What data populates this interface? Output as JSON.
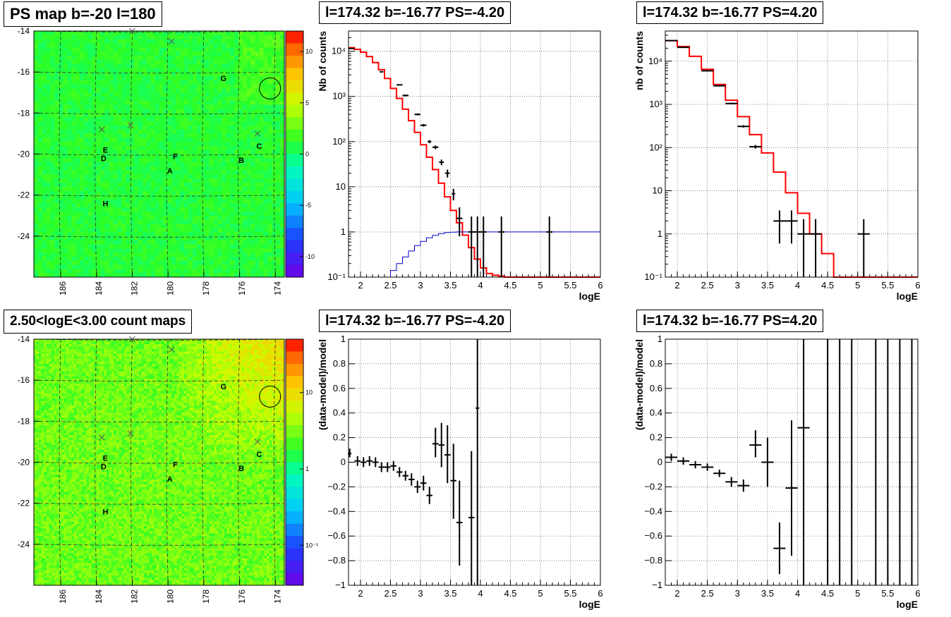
{
  "titles": {
    "map_ps": "PS map b=-20 l=180",
    "spec1": "l=174.32 b=-16.77 PS=-4.20",
    "spec2": "l=174.32 b=-16.77 PS=4.20",
    "map_count": "2.50<logE<3.00 count maps",
    "res1": "l=174.32 b=-16.77 PS=-4.20",
    "res2": "l=174.32 b=-16.77 PS=4.20"
  },
  "colors": {
    "data": "#000000",
    "model": "#ff0000",
    "efficiency": "#0000cc",
    "grid": "#555555",
    "marker": "#555555"
  },
  "chart_data": [
    {
      "type": "heatmap",
      "id": "ps_map",
      "x_ticks": [
        186,
        184,
        182,
        180,
        178,
        176,
        174
      ],
      "y_ticks": [
        -14,
        -16,
        -18,
        -20,
        -22,
        -24
      ],
      "xlim": [
        187.5,
        173.5
      ],
      "ylim": [
        -26,
        -14
      ],
      "colorbar_ticks": [
        "10",
        "5",
        "0",
        "-5",
        "-10"
      ],
      "colorbar_values": [
        10,
        5,
        0,
        -5,
        -10
      ],
      "zlim": [
        -12,
        12
      ],
      "background_value": 1,
      "markers": [
        {
          "label": "A",
          "l": 179.9,
          "b": -20.8
        },
        {
          "label": "B",
          "l": 175.9,
          "b": -20.3
        },
        {
          "label": "C",
          "l": 174.9,
          "b": -19.6
        },
        {
          "label": "D",
          "l": 183.6,
          "b": -20.2
        },
        {
          "label": "E",
          "l": 183.5,
          "b": -19.8
        },
        {
          "label": "F",
          "l": 179.6,
          "b": -20.1
        },
        {
          "label": "G",
          "l": 176.9,
          "b": -16.3
        },
        {
          "label": "H",
          "l": 183.5,
          "b": -22.4
        }
      ],
      "crosses": [
        {
          "l": 182.0,
          "b": -14.0
        },
        {
          "l": 179.8,
          "b": -14.5
        },
        {
          "l": 183.7,
          "b": -18.8
        },
        {
          "l": 182.1,
          "b": -18.6
        },
        {
          "l": 175.0,
          "b": -19.0
        }
      ],
      "circle": {
        "l": 174.3,
        "b": -16.8
      }
    },
    {
      "type": "line",
      "id": "spectrum_neg",
      "xlabel": "logE",
      "ylabel": "Nb of counts",
      "log_y": true,
      "xlim": [
        1.8,
        6.0
      ],
      "ylim": [
        0.1,
        28000
      ],
      "x_ticks": [
        2,
        2.5,
        3,
        3.5,
        4,
        4.5,
        5,
        5.5,
        6
      ],
      "x_tick_labels": [
        "2",
        "2.5",
        "3",
        "3.5",
        "4",
        "4.5",
        "5",
        "5.5",
        "6"
      ],
      "y_ticks": [
        0.1,
        1,
        10,
        100,
        1000,
        10000
      ],
      "y_tick_labels": [
        "10⁻¹",
        "1",
        "10",
        "10²",
        "10³",
        "10⁴"
      ],
      "grid": true,
      "series": [
        {
          "kind": "step",
          "color": "red",
          "x_edges": [
            1.8,
            1.9,
            2.0,
            2.1,
            2.2,
            2.3,
            2.4,
            2.5,
            2.6,
            2.7,
            2.8,
            2.9,
            3.0,
            3.1,
            3.2,
            3.3,
            3.4,
            3.5,
            3.6,
            3.7,
            3.8,
            3.9,
            4.0,
            4.1,
            4.2,
            4.3,
            4.4,
            4.5,
            6.0
          ],
          "values": [
            12000,
            11000,
            9500,
            7600,
            5600,
            3900,
            2500,
            1500,
            900,
            520,
            290,
            160,
            85,
            45,
            24,
            12,
            6,
            3,
            1.6,
            0.85,
            0.45,
            0.25,
            0.16,
            0.12,
            0.11,
            0.105,
            0.1,
            0.1
          ]
        },
        {
          "kind": "step",
          "color": "blue",
          "x_edges": [
            2.4,
            2.5,
            2.6,
            2.7,
            2.8,
            2.9,
            3.0,
            3.1,
            3.2,
            3.3,
            3.4,
            3.5,
            3.6,
            3.7,
            6.0
          ],
          "values": [
            0.1,
            0.14,
            0.2,
            0.28,
            0.38,
            0.5,
            0.62,
            0.74,
            0.84,
            0.92,
            0.97,
            0.99,
            1.0,
            1.0
          ]
        },
        {
          "kind": "points",
          "color": "black",
          "points": [
            {
              "x": 1.85,
              "y": 11500,
              "xe": 0.05,
              "lo": 11300,
              "hi": 11700
            },
            {
              "x": 2.35,
              "y": 3500,
              "xe": 0.03,
              "lo": 3400,
              "hi": 3600
            },
            {
              "x": 2.65,
              "y": 1800,
              "xe": 0.05,
              "lo": 1750,
              "hi": 1850
            },
            {
              "x": 2.75,
              "y": 1050,
              "xe": 0.05,
              "lo": 1000,
              "hi": 1100
            },
            {
              "x": 2.95,
              "y": 400,
              "xe": 0.05,
              "lo": 380,
              "hi": 420
            },
            {
              "x": 3.05,
              "y": 230,
              "xe": 0.05,
              "lo": 215,
              "hi": 245
            },
            {
              "x": 3.15,
              "y": 100,
              "xe": 0.03,
              "lo": 92,
              "hi": 108
            },
            {
              "x": 3.25,
              "y": 75,
              "xe": 0.05,
              "lo": 68,
              "hi": 82
            },
            {
              "x": 3.35,
              "y": 35,
              "xe": 0.04,
              "lo": 30,
              "hi": 40
            },
            {
              "x": 3.45,
              "y": 20,
              "xe": 0.04,
              "lo": 16,
              "hi": 24
            },
            {
              "x": 3.55,
              "y": 7,
              "xe": 0.03,
              "lo": 5,
              "hi": 9
            },
            {
              "x": 3.65,
              "y": 2,
              "xe": 0.05,
              "lo": 0.8,
              "hi": 3.5
            },
            {
              "x": 3.85,
              "y": 1,
              "xe": 0.05,
              "lo": 0.1,
              "hi": 2.2
            },
            {
              "x": 3.95,
              "y": 1,
              "xe": 0.05,
              "lo": 0.1,
              "hi": 2.2
            },
            {
              "x": 4.05,
              "y": 1,
              "xe": 0.05,
              "lo": 0.1,
              "hi": 2.2
            },
            {
              "x": 4.35,
              "y": 1,
              "xe": 0.05,
              "lo": 0.1,
              "hi": 2.2
            },
            {
              "x": 5.15,
              "y": 1,
              "xe": 0.05,
              "lo": 0.1,
              "hi": 2.2
            }
          ]
        }
      ]
    },
    {
      "type": "line",
      "id": "spectrum_pos",
      "xlabel": "logE",
      "ylabel": "nb of counts",
      "log_y": true,
      "xlim": [
        1.8,
        6.0
      ],
      "ylim": [
        0.1,
        50000
      ],
      "x_ticks": [
        2,
        2.5,
        3,
        3.5,
        4,
        4.5,
        5,
        5.5,
        6
      ],
      "x_tick_labels": [
        "2",
        "2.5",
        "3",
        "3.5",
        "4",
        "4.5",
        "5",
        "5.5",
        "6"
      ],
      "y_ticks": [
        0.1,
        1,
        10,
        100,
        1000,
        10000
      ],
      "y_tick_labels": [
        "10⁻¹",
        "1",
        "10",
        "10²",
        "10³",
        "10⁴"
      ],
      "grid": true,
      "series": [
        {
          "kind": "step",
          "color": "red",
          "x_edges": [
            1.8,
            2.0,
            2.2,
            2.4,
            2.6,
            2.8,
            3.0,
            3.2,
            3.4,
            3.6,
            3.8,
            4.0,
            4.2,
            4.4,
            4.6,
            6.0
          ],
          "values": [
            30000,
            22000,
            13000,
            6500,
            2900,
            1250,
            520,
            200,
            75,
            27,
            9,
            3,
            1,
            0.35,
            0.1
          ]
        },
        {
          "kind": "points",
          "color": "black",
          "points": [
            {
              "x": 1.9,
              "y": 30000,
              "xe": 0.1,
              "lo": 29600,
              "hi": 30400
            },
            {
              "x": 2.1,
              "y": 21000,
              "xe": 0.1,
              "lo": 20700,
              "hi": 21300
            },
            {
              "x": 2.5,
              "y": 6000,
              "xe": 0.1,
              "lo": 5900,
              "hi": 6100
            },
            {
              "x": 2.7,
              "y": 2700,
              "xe": 0.1,
              "lo": 2600,
              "hi": 2800
            },
            {
              "x": 2.9,
              "y": 1050,
              "xe": 0.1,
              "lo": 1000,
              "hi": 1100
            },
            {
              "x": 3.1,
              "y": 310,
              "xe": 0.1,
              "lo": 290,
              "hi": 330
            },
            {
              "x": 3.3,
              "y": 105,
              "xe": 0.1,
              "lo": 95,
              "hi": 115
            },
            {
              "x": 3.7,
              "y": 2,
              "xe": 0.1,
              "lo": 0.6,
              "hi": 3.5
            },
            {
              "x": 3.9,
              "y": 2,
              "xe": 0.1,
              "lo": 0.6,
              "hi": 3.5
            },
            {
              "x": 4.1,
              "y": 1,
              "xe": 0.1,
              "lo": 0.1,
              "hi": 2.2
            },
            {
              "x": 4.3,
              "y": 1,
              "xe": 0.1,
              "lo": 0.1,
              "hi": 2.2
            },
            {
              "x": 5.1,
              "y": 1,
              "xe": 0.1,
              "lo": 0.1,
              "hi": 2.2
            }
          ]
        }
      ]
    },
    {
      "type": "heatmap",
      "id": "count_map",
      "x_ticks": [
        186,
        184,
        182,
        180,
        178,
        176,
        174
      ],
      "y_ticks": [
        -14,
        -16,
        -18,
        -20,
        -22,
        -24
      ],
      "xlim": [
        187.5,
        173.5
      ],
      "ylim": [
        -26,
        -14
      ],
      "colorbar_ticks": [
        "10",
        "1",
        "10⁻¹"
      ],
      "colorbar_values": [
        10,
        1,
        0.1
      ],
      "log_z": true,
      "zlim": [
        0.03,
        50
      ],
      "background_value": 3,
      "markers": [
        {
          "label": "A",
          "l": 179.9,
          "b": -20.8
        },
        {
          "label": "B",
          "l": 175.9,
          "b": -20.3
        },
        {
          "label": "C",
          "l": 174.9,
          "b": -19.6
        },
        {
          "label": "D",
          "l": 183.6,
          "b": -20.2
        },
        {
          "label": "E",
          "l": 183.5,
          "b": -19.8
        },
        {
          "label": "F",
          "l": 179.6,
          "b": -20.1
        },
        {
          "label": "G",
          "l": 176.9,
          "b": -16.3
        },
        {
          "label": "H",
          "l": 183.5,
          "b": -22.4
        }
      ],
      "crosses": [
        {
          "l": 182.0,
          "b": -14.0
        },
        {
          "l": 179.8,
          "b": -14.5
        },
        {
          "l": 183.7,
          "b": -18.8
        },
        {
          "l": 182.1,
          "b": -18.6
        },
        {
          "l": 175.0,
          "b": -19.0
        }
      ],
      "circle": {
        "l": 174.3,
        "b": -16.8
      }
    },
    {
      "type": "scatter",
      "id": "residual_neg",
      "xlabel": "logE",
      "ylabel": "(data-model)/model",
      "xlim": [
        1.8,
        6.0
      ],
      "ylim": [
        -1,
        1
      ],
      "x_ticks": [
        2,
        2.5,
        3,
        3.5,
        4,
        4.5,
        5,
        5.5,
        6
      ],
      "x_tick_labels": [
        "2",
        "2.5",
        "3",
        "3.5",
        "4",
        "4.5",
        "5",
        "5.5",
        "6"
      ],
      "y_ticks": [
        -1,
        -0.8,
        -0.6,
        -0.4,
        -0.2,
        0,
        0.2,
        0.4,
        0.6,
        0.8,
        1
      ],
      "y_tick_labels": [
        "−1",
        "−0.8",
        "−0.6",
        "−0.4",
        "−0.2",
        "0",
        "0.2",
        "0.4",
        "0.6",
        "0.8",
        "1"
      ],
      "grid": true,
      "points": [
        {
          "x": 1.82,
          "y": 0.07,
          "xe": 0.03,
          "lo": 0.04,
          "hi": 0.11
        },
        {
          "x": 1.95,
          "y": 0.01,
          "xe": 0.05,
          "lo": -0.03,
          "hi": 0.05
        },
        {
          "x": 2.05,
          "y": 0.0,
          "xe": 0.05,
          "lo": -0.04,
          "hi": 0.04
        },
        {
          "x": 2.15,
          "y": 0.01,
          "xe": 0.05,
          "lo": -0.03,
          "hi": 0.05
        },
        {
          "x": 2.25,
          "y": 0.0,
          "xe": 0.05,
          "lo": -0.04,
          "hi": 0.04
        },
        {
          "x": 2.35,
          "y": -0.04,
          "xe": 0.05,
          "lo": -0.08,
          "hi": 0.0
        },
        {
          "x": 2.45,
          "y": -0.04,
          "xe": 0.05,
          "lo": -0.08,
          "hi": 0.0
        },
        {
          "x": 2.55,
          "y": -0.03,
          "xe": 0.05,
          "lo": -0.07,
          "hi": 0.01
        },
        {
          "x": 2.65,
          "y": -0.08,
          "xe": 0.05,
          "lo": -0.12,
          "hi": -0.04
        },
        {
          "x": 2.75,
          "y": -0.11,
          "xe": 0.05,
          "lo": -0.15,
          "hi": -0.07
        },
        {
          "x": 2.85,
          "y": -0.14,
          "xe": 0.05,
          "lo": -0.19,
          "hi": -0.09
        },
        {
          "x": 2.95,
          "y": -0.2,
          "xe": 0.05,
          "lo": -0.25,
          "hi": -0.15
        },
        {
          "x": 3.05,
          "y": -0.17,
          "xe": 0.05,
          "lo": -0.23,
          "hi": -0.11
        },
        {
          "x": 3.15,
          "y": -0.27,
          "xe": 0.05,
          "lo": -0.34,
          "hi": -0.2
        },
        {
          "x": 3.25,
          "y": 0.15,
          "xe": 0.05,
          "lo": 0.04,
          "hi": 0.28
        },
        {
          "x": 3.35,
          "y": 0.14,
          "xe": 0.05,
          "lo": -0.04,
          "hi": 0.32
        },
        {
          "x": 3.45,
          "y": 0.06,
          "xe": 0.05,
          "lo": -0.17,
          "hi": 0.3
        },
        {
          "x": 3.55,
          "y": -0.15,
          "xe": 0.05,
          "lo": -0.46,
          "hi": 0.15
        },
        {
          "x": 3.65,
          "y": -0.49,
          "xe": 0.05,
          "lo": -0.84,
          "hi": -0.15
        },
        {
          "x": 3.85,
          "y": -0.45,
          "xe": 0.05,
          "lo": -1.0,
          "hi": 0.09
        },
        {
          "x": 3.95,
          "y": 0.44,
          "xe": 0.03,
          "lo": -1.0,
          "hi": 1.0
        }
      ]
    },
    {
      "type": "scatter",
      "id": "residual_pos",
      "xlabel": "logE",
      "ylabel": "(data-model)/model",
      "xlim": [
        1.8,
        6.0
      ],
      "ylim": [
        -1,
        1
      ],
      "x_ticks": [
        2,
        2.5,
        3,
        3.5,
        4,
        4.5,
        5,
        5.5,
        6
      ],
      "x_tick_labels": [
        "2",
        "2.5",
        "3",
        "3.5",
        "4",
        "4.5",
        "5",
        "5.5",
        "6"
      ],
      "y_ticks": [
        -1,
        -0.8,
        -0.6,
        -0.4,
        -0.2,
        0,
        0.2,
        0.4,
        0.6,
        0.8,
        1
      ],
      "y_tick_labels": [
        "−1",
        "−0.8",
        "−0.6",
        "−0.4",
        "−0.2",
        "0",
        "0.2",
        "0.4",
        "0.6",
        "0.8",
        "1"
      ],
      "grid": true,
      "points": [
        {
          "x": 1.9,
          "y": 0.04,
          "xe": 0.1,
          "lo": 0.01,
          "hi": 0.07
        },
        {
          "x": 2.1,
          "y": 0.01,
          "xe": 0.1,
          "lo": -0.02,
          "hi": 0.04
        },
        {
          "x": 2.3,
          "y": -0.02,
          "xe": 0.1,
          "lo": -0.05,
          "hi": 0.01
        },
        {
          "x": 2.5,
          "y": -0.04,
          "xe": 0.1,
          "lo": -0.07,
          "hi": -0.01
        },
        {
          "x": 2.7,
          "y": -0.09,
          "xe": 0.1,
          "lo": -0.12,
          "hi": -0.06
        },
        {
          "x": 2.9,
          "y": -0.16,
          "xe": 0.1,
          "lo": -0.2,
          "hi": -0.12
        },
        {
          "x": 3.1,
          "y": -0.19,
          "xe": 0.1,
          "lo": -0.24,
          "hi": -0.14
        },
        {
          "x": 3.3,
          "y": 0.14,
          "xe": 0.1,
          "lo": 0.04,
          "hi": 0.26
        },
        {
          "x": 3.5,
          "y": 0.0,
          "xe": 0.1,
          "lo": -0.2,
          "hi": 0.2
        },
        {
          "x": 3.7,
          "y": -0.7,
          "xe": 0.1,
          "lo": -0.91,
          "hi": -0.49
        },
        {
          "x": 3.9,
          "y": -0.21,
          "xe": 0.1,
          "lo": -0.76,
          "hi": 0.34
        },
        {
          "x": 4.1,
          "y": 0.28,
          "xe": 0.1,
          "lo": -1.0,
          "hi": 1.0
        },
        {
          "x": 4.5,
          "y": 1.0,
          "xe": 0.0,
          "lo": -1.0,
          "hi": 1.0
        },
        {
          "x": 4.7,
          "y": 1.0,
          "xe": 0.0,
          "lo": -1.0,
          "hi": 1.0
        },
        {
          "x": 4.9,
          "y": 1.0,
          "xe": 0.0,
          "lo": -1.0,
          "hi": 1.0
        },
        {
          "x": 5.3,
          "y": 1.0,
          "xe": 0.0,
          "lo": -1.0,
          "hi": 1.0
        },
        {
          "x": 5.5,
          "y": 1.0,
          "xe": 0.0,
          "lo": -1.0,
          "hi": 1.0
        },
        {
          "x": 5.7,
          "y": 1.0,
          "xe": 0.0,
          "lo": -1.0,
          "hi": 1.0
        },
        {
          "x": 5.9,
          "y": 1.0,
          "xe": 0.0,
          "lo": -1.0,
          "hi": 1.0
        }
      ]
    }
  ]
}
